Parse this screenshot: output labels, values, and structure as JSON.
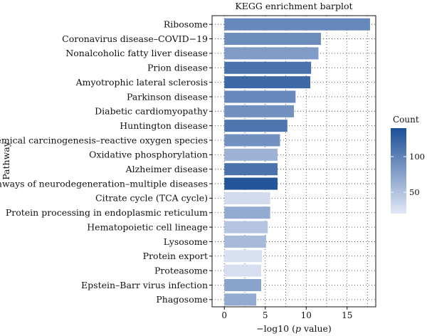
{
  "chart_data": {
    "type": "bar",
    "orientation": "horizontal",
    "title": "KEGG enrichment barplot",
    "xlabel_prefix": "−log10 (",
    "xlabel_italic": "p",
    "xlabel_suffix": " value)",
    "ylabel": "Pathway",
    "xlim": [
      -1.5,
      18.5
    ],
    "xticks": [
      0,
      5,
      10,
      15
    ],
    "grid": true,
    "legend": {
      "title": "Count",
      "position": "right",
      "ticks": [
        50,
        100
      ],
      "range": [
        20,
        140
      ],
      "color_low": "#e3e8f6",
      "color_high": "#1c4f96"
    },
    "categories": [
      "Ribosome",
      "Coronavirus disease–COVID−19",
      "Nonalcoholic fatty liver disease",
      "Prion disease",
      "Amyotrophic lateral sclerosis",
      "Parkinson disease",
      "Diabetic cardiomyopathy",
      "Huntington disease",
      "Chemical carcinogenesis–reactive oxygen species",
      "Oxidative phosphorylation",
      "Alzheimer disease",
      "Pathways of neurodegeneration–multiple diseases",
      "Citrate cycle (TCA cycle)",
      "Protein processing in endoplasmic reticulum",
      "Hematopoietic cell lineage",
      "Lysosome",
      "Protein export",
      "Proteasome",
      "Epstein–Barr virus infection",
      "Phagosome"
    ],
    "values": [
      17.8,
      11.8,
      11.5,
      10.6,
      10.5,
      8.7,
      8.5,
      7.7,
      6.8,
      6.5,
      6.5,
      6.5,
      5.6,
      5.6,
      5.3,
      5.1,
      4.6,
      4.5,
      4.5,
      3.9
    ],
    "counts": [
      95,
      92,
      80,
      112,
      120,
      95,
      88,
      110,
      88,
      62,
      112,
      135,
      30,
      68,
      48,
      56,
      26,
      28,
      74,
      68
    ]
  }
}
